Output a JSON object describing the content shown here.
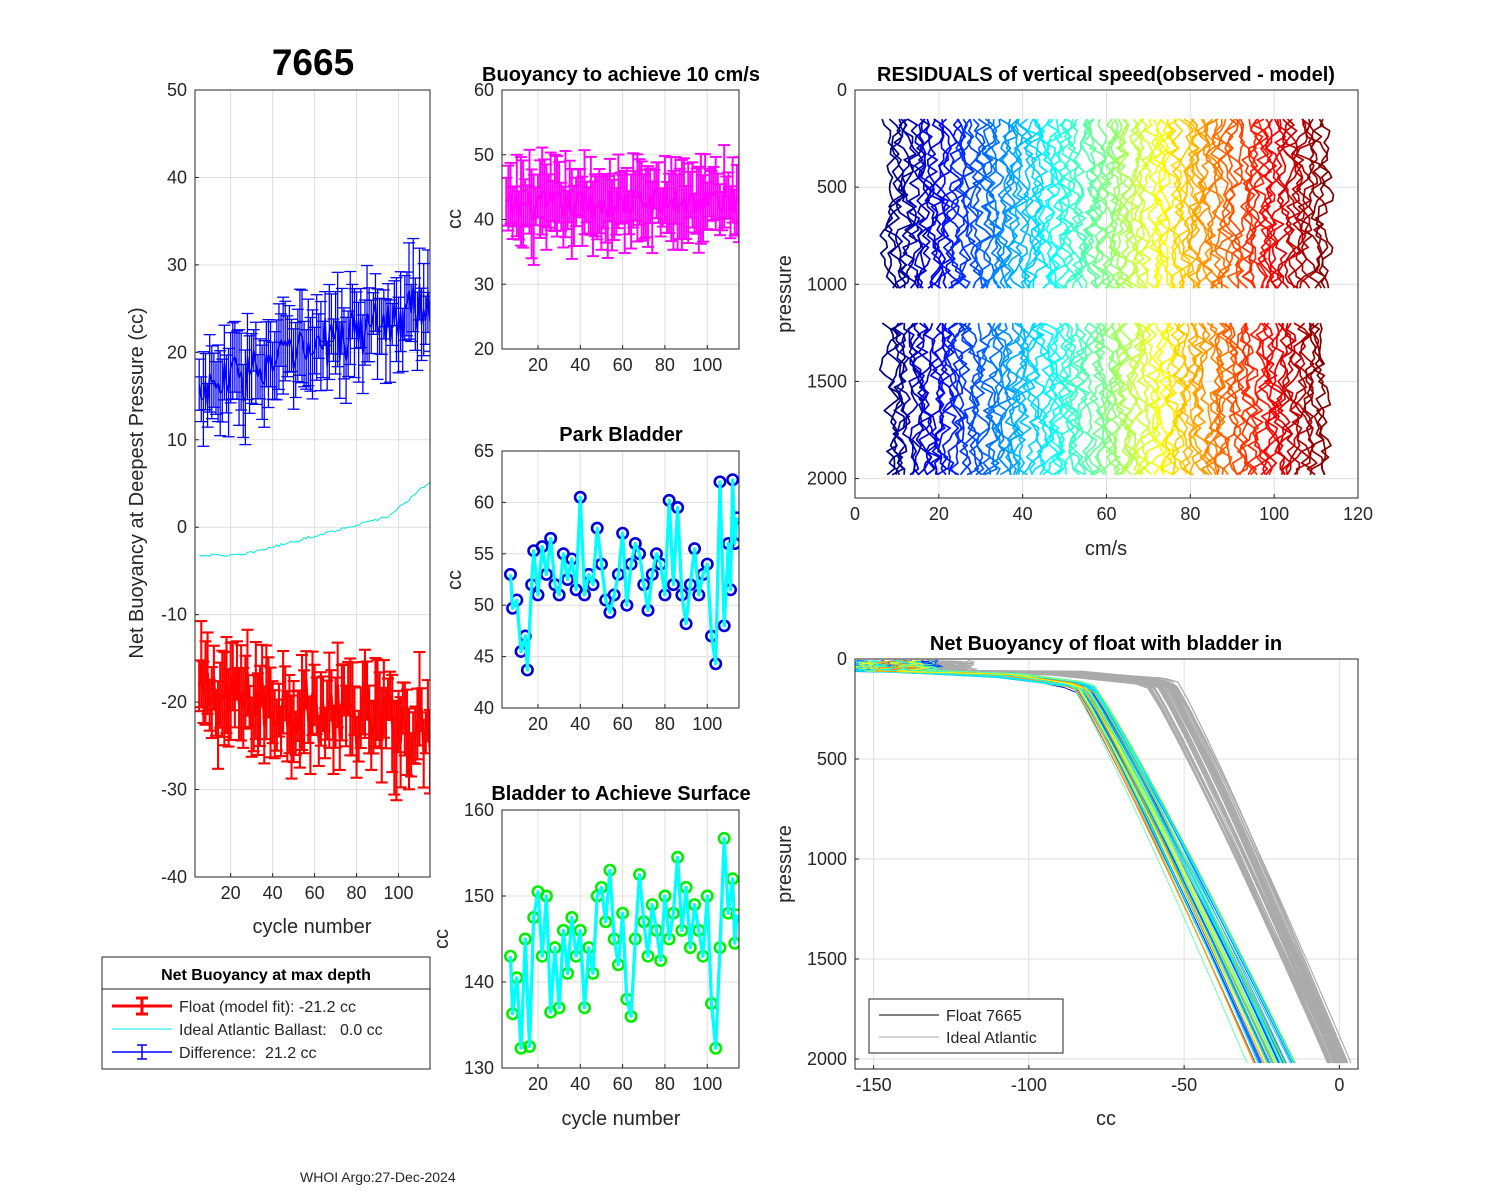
{
  "figure": {
    "suptitle": "7665",
    "footer": "WHOI Argo:27-Dec-2024"
  },
  "legend_main": {
    "title": "Net Buoyancy at max depth",
    "entries": [
      {
        "label": "Float (model fit): -21.2 cc",
        "color": "#ff0000"
      },
      {
        "label": "Ideal Atlantic Ballast:   0.0 cc",
        "color": "#00e5e5"
      },
      {
        "label": "Difference:  21.2 cc",
        "color": "#0000ff"
      }
    ]
  },
  "legend_profiles": {
    "entries": [
      {
        "label": "Float 7665",
        "color": "#000000"
      },
      {
        "label": "Ideal Atlantic",
        "color": "#aaaaaa"
      }
    ]
  },
  "chart_data": [
    {
      "id": "net_buoyancy",
      "type": "line",
      "title": "",
      "xlabel": "cycle number",
      "ylabel": "Net Buoyancy at Deepest Pressure (cc)",
      "xlim": [
        3,
        115
      ],
      "ylim": [
        -40,
        50
      ],
      "xticks": [
        20,
        40,
        60,
        80,
        100
      ],
      "yticks": [
        -40,
        -30,
        -20,
        -10,
        0,
        10,
        20,
        30,
        40,
        50
      ],
      "grid": true,
      "series": [
        {
          "name": "Float (model fit)",
          "color": "#ff0000",
          "errorbars": true,
          "trend": [
            [
              5,
              -19
            ],
            [
              115,
              -23
            ]
          ],
          "noise": 3.5,
          "err": 3.6
        },
        {
          "name": "Ideal Atlantic Ballast",
          "color": "#00e5e5",
          "errorbars": false,
          "trend": [
            [
              5,
              -3.2
            ],
            [
              25,
              -3.2
            ],
            [
              60,
              -1.0
            ],
            [
              95,
              1.2
            ],
            [
              115,
              5.2
            ]
          ],
          "noise": 0.15,
          "err": 0
        },
        {
          "name": "Difference",
          "color": "#0000ff",
          "errorbars": true,
          "trend": [
            [
              5,
              15.5
            ],
            [
              115,
              25.5
            ]
          ],
          "noise": 3.0,
          "err": 3.6
        }
      ]
    },
    {
      "id": "buoyancy_10cms",
      "type": "line",
      "title": "Buoyancy to achieve 10 cm/s",
      "xlabel": "",
      "ylabel": "cc",
      "xlim": [
        3,
        115
      ],
      "ylim": [
        20,
        60
      ],
      "xticks": [
        20,
        40,
        60,
        80,
        100
      ],
      "yticks": [
        20,
        30,
        40,
        50,
        60
      ],
      "grid": true,
      "series": [
        {
          "name": "Buoyancy",
          "color": "#ff00ff",
          "errorbars": true,
          "trend": [
            [
              5,
              42
            ],
            [
              115,
              43
            ]
          ],
          "noise": 2.3,
          "err": 4.5
        }
      ]
    },
    {
      "id": "park_bladder",
      "type": "line",
      "title": "Park Bladder",
      "xlabel": "",
      "ylabel": "cc",
      "xlim": [
        3,
        115
      ],
      "ylim": [
        40,
        65
      ],
      "xticks": [
        20,
        40,
        60,
        80,
        100
      ],
      "yticks": [
        40,
        45,
        50,
        55,
        60,
        65
      ],
      "grid": true,
      "series": [
        {
          "name": "Park Bladder",
          "color": "#00ffff",
          "marker_color": "#0000dd",
          "markers": "circle",
          "points": [
            [
              7,
              53
            ],
            [
              8,
              49.7
            ],
            [
              10,
              50.5
            ],
            [
              12,
              45.5
            ],
            [
              14,
              47
            ],
            [
              15,
              43.7
            ],
            [
              17,
              52
            ],
            [
              18,
              55.3
            ],
            [
              20,
              51
            ],
            [
              22,
              55.7
            ],
            [
              24,
              53
            ],
            [
              26,
              56.5
            ],
            [
              28,
              52
            ],
            [
              30,
              51
            ],
            [
              32,
              55
            ],
            [
              34,
              52.5
            ],
            [
              36,
              54.5
            ],
            [
              38,
              51.5
            ],
            [
              40,
              60.5
            ],
            [
              42,
              51
            ],
            [
              44,
              53
            ],
            [
              46,
              52
            ],
            [
              48,
              57.5
            ],
            [
              50,
              54
            ],
            [
              52,
              50.5
            ],
            [
              54,
              49.3
            ],
            [
              56,
              51
            ],
            [
              58,
              53
            ],
            [
              60,
              57
            ],
            [
              62,
              50
            ],
            [
              64,
              54
            ],
            [
              66,
              56
            ],
            [
              68,
              55
            ],
            [
              70,
              52
            ],
            [
              72,
              49.5
            ],
            [
              74,
              53
            ],
            [
              76,
              55
            ],
            [
              78,
              54
            ],
            [
              80,
              51
            ],
            [
              82,
              60.2
            ],
            [
              84,
              52
            ],
            [
              86,
              59.5
            ],
            [
              88,
              51
            ],
            [
              90,
              48.2
            ],
            [
              92,
              52
            ],
            [
              94,
              55.5
            ],
            [
              96,
              51
            ],
            [
              98,
              53
            ],
            [
              100,
              54
            ],
            [
              102,
              47
            ],
            [
              104,
              44.3
            ],
            [
              106,
              62
            ],
            [
              108,
              48
            ],
            [
              110,
              56
            ],
            [
              111,
              51.5
            ],
            [
              112,
              62.2
            ],
            [
              113,
              56
            ],
            [
              114,
              58.5
            ]
          ]
        }
      ]
    },
    {
      "id": "bladder_surface",
      "type": "line",
      "title": "Bladder to Achieve Surface",
      "xlabel": "cycle number",
      "ylabel": "cc",
      "xlim": [
        3,
        115
      ],
      "ylim": [
        130,
        160
      ],
      "xticks": [
        20,
        40,
        60,
        80,
        100
      ],
      "yticks": [
        130,
        140,
        150,
        160
      ],
      "grid": true,
      "series": [
        {
          "name": "Bladder",
          "color": "#00ffff",
          "marker_color": "#00ee00",
          "markers": "circle",
          "points": [
            [
              7,
              143
            ],
            [
              8,
              136.3
            ],
            [
              10,
              140.5
            ],
            [
              12,
              132.3
            ],
            [
              14,
              145
            ],
            [
              16,
              132.5
            ],
            [
              18,
              147.5
            ],
            [
              20,
              150.5
            ],
            [
              22,
              143
            ],
            [
              24,
              150
            ],
            [
              26,
              136.5
            ],
            [
              28,
              144
            ],
            [
              30,
              137
            ],
            [
              32,
              146
            ],
            [
              34,
              141
            ],
            [
              36,
              147.5
            ],
            [
              38,
              143
            ],
            [
              40,
              146
            ],
            [
              42,
              137
            ],
            [
              44,
              144
            ],
            [
              46,
              141
            ],
            [
              48,
              150
            ],
            [
              50,
              151
            ],
            [
              52,
              147
            ],
            [
              54,
              153
            ],
            [
              56,
              145
            ],
            [
              58,
              142
            ],
            [
              60,
              148
            ],
            [
              62,
              138
            ],
            [
              64,
              136
            ],
            [
              66,
              145
            ],
            [
              68,
              152.5
            ],
            [
              70,
              147
            ],
            [
              72,
              143
            ],
            [
              74,
              149
            ],
            [
              76,
              146
            ],
            [
              78,
              142.5
            ],
            [
              80,
              150
            ],
            [
              82,
              145
            ],
            [
              84,
              148
            ],
            [
              86,
              154.5
            ],
            [
              88,
              146
            ],
            [
              90,
              151
            ],
            [
              92,
              144
            ],
            [
              94,
              149
            ],
            [
              96,
              146
            ],
            [
              98,
              143
            ],
            [
              100,
              150
            ],
            [
              102,
              137.5
            ],
            [
              104,
              132.3
            ],
            [
              106,
              144
            ],
            [
              108,
              156.7
            ],
            [
              110,
              148
            ],
            [
              112,
              152
            ],
            [
              113,
              144.5
            ],
            [
              114,
              147.8
            ]
          ]
        }
      ]
    },
    {
      "id": "residuals",
      "type": "line",
      "title": "RESIDUALS of vertical speed(observed - model)",
      "xlabel": "cm/s",
      "ylabel": "pressure",
      "xlim": [
        0,
        120
      ],
      "ylim": [
        0,
        2100
      ],
      "y_reversed": true,
      "xticks": [
        0,
        20,
        40,
        60,
        80,
        100,
        120
      ],
      "yticks": [
        0,
        500,
        1000,
        1500,
        2000
      ],
      "grid": true,
      "colormap": "jet",
      "profile_count": 105,
      "x_start": 8,
      "x_spacing": 1.0,
      "segments": [
        [
          150,
          1020
        ],
        [
          1200,
          2000
        ]
      ],
      "wiggle": 2.4
    },
    {
      "id": "net_buoyancy_profiles",
      "type": "line",
      "title": "Net Buoyancy of float with bladder in",
      "xlabel": "cc",
      "ylabel": "pressure",
      "xlim": [
        -156,
        6
      ],
      "ylim": [
        0,
        2050
      ],
      "y_reversed": true,
      "xticks": [
        -150,
        -100,
        -50,
        0
      ],
      "yticks": [
        0,
        500,
        1000,
        1500,
        2000
      ],
      "grid": true,
      "series": [
        {
          "name": "Float 7665",
          "color": "colormap-jet",
          "count": 60,
          "surface_x": [
            -155,
            -132
          ],
          "knee": [
            -86,
            -78
          ],
          "bottom": [
            -31,
            -12
          ],
          "knee_depth": 150
        },
        {
          "name": "Ideal Atlantic",
          "color": "#aaaaaa",
          "count": 50,
          "surface_x": [
            -150,
            -120
          ],
          "knee": [
            -62,
            -52
          ],
          "bottom": [
            -5,
            4
          ],
          "knee_depth": 130
        }
      ]
    }
  ]
}
